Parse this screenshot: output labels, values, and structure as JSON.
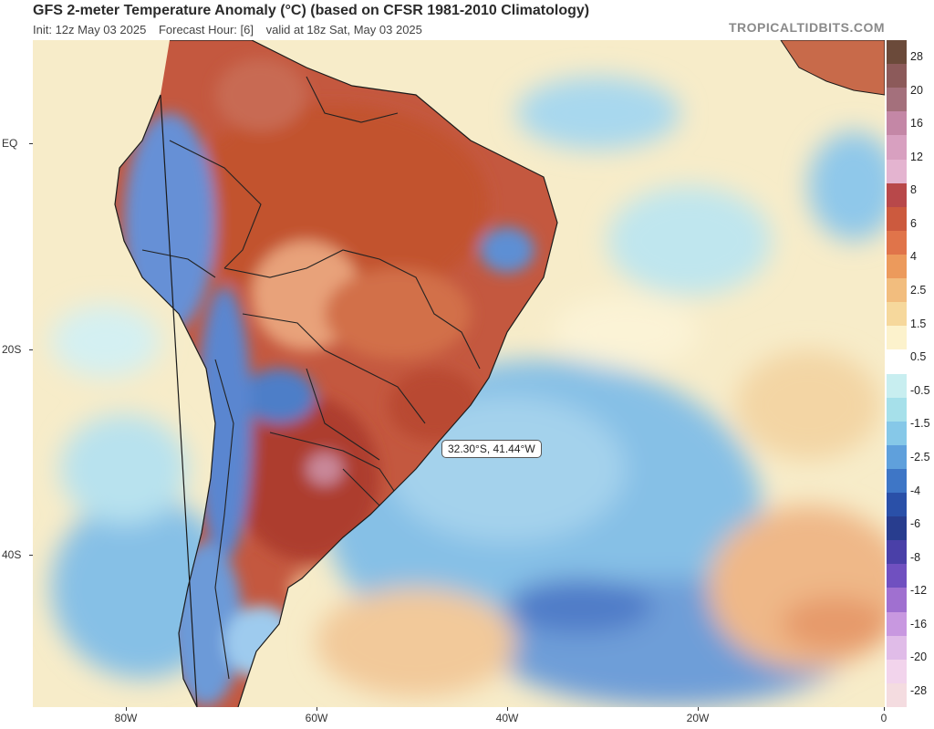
{
  "header": {
    "title": "GFS 2-meter Temperature Anomaly (°C) (based on CFSR 1981-2010 Climatology)",
    "init": "Init: 12z May 03 2025",
    "forecast_hour": "Forecast Hour: [6]",
    "valid": "valid at 18z Sat, May 03 2025",
    "brand": "TROPICALTIDBITS.COM"
  },
  "map": {
    "lat_labels": [
      "EQ",
      "20S",
      "40S"
    ],
    "lon_labels": [
      "80W",
      "60W",
      "40W",
      "20W",
      "0"
    ],
    "tooltip": "32.30°S, 41.44°W"
  },
  "colorbar": {
    "labels": [
      "28",
      "20",
      "16",
      "12",
      "8",
      "6",
      "4",
      "2.5",
      "1.5",
      "0.5",
      "-0.5",
      "-1.5",
      "-2.5",
      "-4",
      "-6",
      "-8",
      "-12",
      "-16",
      "-20",
      "-28"
    ],
    "colors": [
      "#6b4a3a",
      "#8c5a5a",
      "#a4707c",
      "#c487a6",
      "#d8a0c0",
      "#e4b4d0",
      "#b8484a",
      "#cc5a3e",
      "#e0744a",
      "#ec9a5c",
      "#f2bd7e",
      "#f6d89c",
      "#fcf2cc",
      "#ffffff",
      "#c8eef0",
      "#a6e0ea",
      "#86c8e8",
      "#5fa0dc",
      "#3e76c6",
      "#2a50a8",
      "#283d8e",
      "#4a40a8",
      "#7050c0",
      "#a070d0",
      "#c898e0",
      "#e0bce8",
      "#f2d4ec",
      "#f4dce0"
    ]
  }
}
